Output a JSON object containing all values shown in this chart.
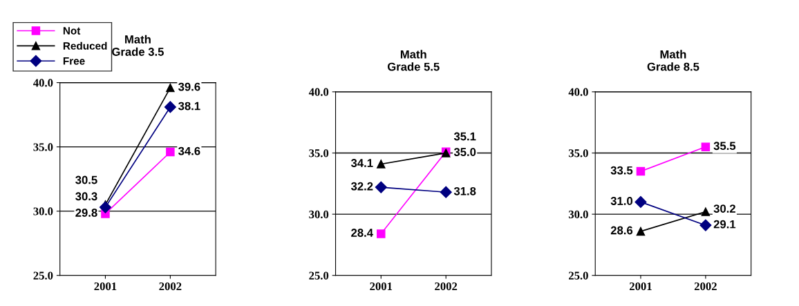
{
  "chart_data": [
    {
      "type": "line",
      "title": "Math\nGrade 3.5",
      "categories": [
        "2001",
        "2002"
      ],
      "ylim": [
        25,
        40
      ],
      "yticks": [
        {
          "value": 25,
          "label": "25.0"
        },
        {
          "value": 30,
          "label": "30.0"
        },
        {
          "value": 35,
          "label": "35.0"
        },
        {
          "value": 40,
          "label": "40.0"
        }
      ],
      "grid": "y",
      "legend": "top left",
      "series": [
        {
          "name": "Not",
          "color": "#ff00ff",
          "marker": "square",
          "values": [
            29.8,
            34.6
          ],
          "value_labels": [
            "29.8",
            "34.6"
          ]
        },
        {
          "name": "Reduced",
          "color": "#000000",
          "marker": "triangle",
          "values": [
            30.5,
            39.6
          ],
          "value_labels": [
            "30.5",
            "39.6"
          ]
        },
        {
          "name": "Free",
          "color": "#000080",
          "marker": "diamond",
          "values": [
            30.3,
            38.1
          ],
          "value_labels": [
            "30.3",
            "38.1"
          ]
        }
      ]
    },
    {
      "type": "line",
      "title": "Math\nGrade 5.5",
      "categories": [
        "2001",
        "2002"
      ],
      "ylim": [
        25,
        40
      ],
      "yticks": [
        {
          "value": 25,
          "label": "25.0"
        },
        {
          "value": 30,
          "label": "30.0"
        },
        {
          "value": 35,
          "label": "35.0"
        },
        {
          "value": 40,
          "label": "40.0"
        }
      ],
      "grid": "y",
      "series": [
        {
          "color": "#ff00ff",
          "marker": "square",
          "values": [
            28.4,
            35.1
          ],
          "value_labels": [
            "28.4",
            "35.1"
          ]
        },
        {
          "color": "#000000",
          "marker": "triangle",
          "values": [
            34.1,
            35.0
          ],
          "value_labels": [
            "34.1",
            "35.0"
          ]
        },
        {
          "color": "#000080",
          "marker": "diamond",
          "values": [
            32.2,
            31.8
          ],
          "value_labels": [
            "32.2",
            "31.8"
          ]
        }
      ]
    },
    {
      "type": "line",
      "title": "Math\nGrade 8.5",
      "categories": [
        "2001",
        "2002"
      ],
      "ylim": [
        25,
        40
      ],
      "yticks": [
        {
          "value": 25,
          "label": "25.0"
        },
        {
          "value": 30,
          "label": "30.0"
        },
        {
          "value": 35,
          "label": "35.0"
        },
        {
          "value": 40,
          "label": "40.0"
        }
      ],
      "grid": "y",
      "series": [
        {
          "color": "#ff00ff",
          "marker": "square",
          "values": [
            33.5,
            35.5
          ],
          "value_labels": [
            "33.5",
            "35.5"
          ]
        },
        {
          "color": "#000000",
          "marker": "triangle",
          "values": [
            28.6,
            30.2
          ],
          "value_labels": [
            "28.6",
            "30.2"
          ]
        },
        {
          "color": "#000080",
          "marker": "diamond",
          "values": [
            31.0,
            29.1
          ],
          "value_labels": [
            "31.0",
            "29.1"
          ]
        }
      ]
    }
  ]
}
